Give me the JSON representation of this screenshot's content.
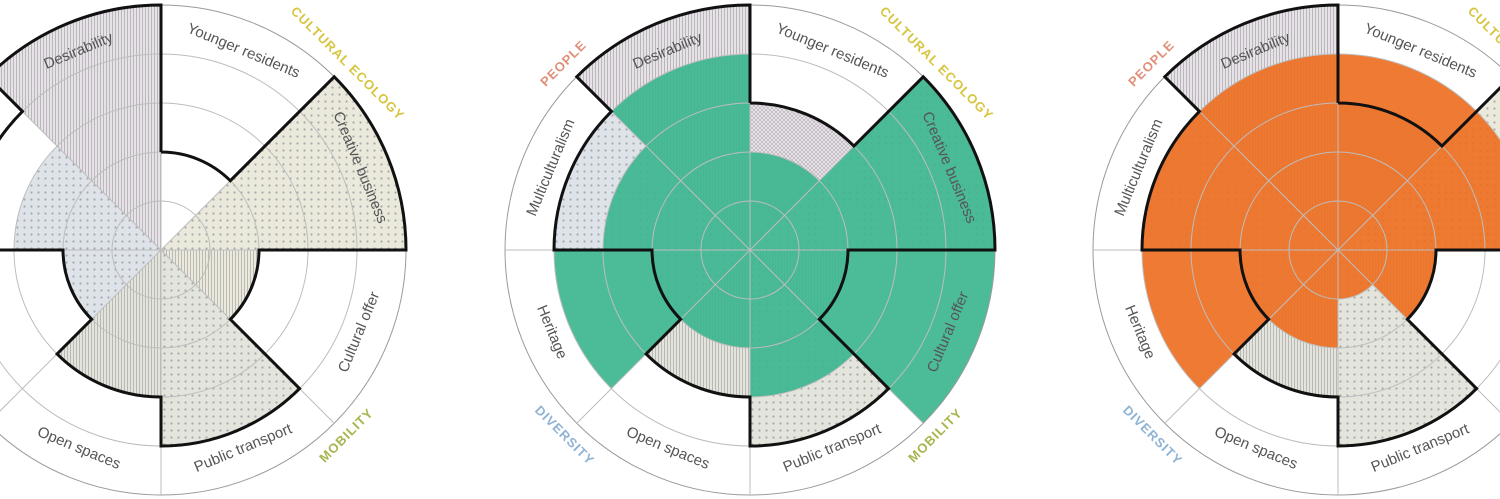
{
  "chart_data": [
    {
      "type": "polar-area",
      "series": [
        {
          "values": [
            0,
            5,
            2,
            4,
            3,
            2,
            3,
            5
          ],
          "fill": "shared-categories"
        }
      ],
      "outline_values": [
        2,
        5,
        2,
        4,
        3,
        2,
        4,
        5
      ],
      "group_labels_visible": [
        "CULTURAL ECOLOGY",
        "MOBILITY"
      ]
    },
    {
      "type": "polar-area",
      "series": [
        {
          "values": [
            3,
            5,
            2,
            4,
            3,
            2,
            4,
            5
          ],
          "fill": "shared-categories"
        },
        {
          "name": "",
          "values": [
            2,
            5,
            5,
            3,
            2,
            4,
            3,
            4
          ],
          "color": "#3db58f"
        }
      ],
      "outline_values": [
        3,
        5,
        2,
        4,
        3,
        2,
        4,
        5
      ],
      "group_labels_visible": [
        "PEOPLE",
        "CULTURAL ECOLOGY",
        "MOBILITY",
        "DIVERSITY"
      ]
    },
    {
      "type": "polar-area",
      "series": [
        {
          "values": [
            3,
            5,
            2,
            4,
            3,
            2,
            4,
            5
          ],
          "fill": "shared-categories"
        },
        {
          "name": "",
          "values": [
            4,
            4,
            2,
            1,
            2,
            4,
            4,
            4
          ],
          "color": "#ee6f22"
        }
      ],
      "outline_values": [
        3,
        5,
        2,
        4,
        3,
        2,
        4,
        5
      ],
      "group_labels_visible": [
        "PEOPLE",
        "CULTURAL ECOLOGY",
        "DIVERSITY"
      ]
    }
  ],
  "categories": [
    "Younger residents",
    "Creative business",
    "Cultural offer",
    "Public transport",
    "Open spaces",
    "Heritage",
    "Multiculturalism",
    "Desirability"
  ],
  "category_fills": [
    "#e7e2e7",
    "#ebe9dc",
    "#ebe9dc",
    "#e3e5dc",
    "#e3e5dc",
    "#dde3e9",
    "#dde3e9",
    "#e7e2e7"
  ],
  "groups": {
    "people": {
      "label": "PEOPLE",
      "color": "#e0907a"
    },
    "cultural_ecology": {
      "label": "CULTURAL ECOLOGY",
      "color": "#d7c53f"
    },
    "mobility": {
      "label": "MOBILITY",
      "color": "#a8b54e"
    },
    "diversity": {
      "label": "DIVERSITY",
      "color": "#8fb3d4"
    }
  },
  "scale_max": 5
}
